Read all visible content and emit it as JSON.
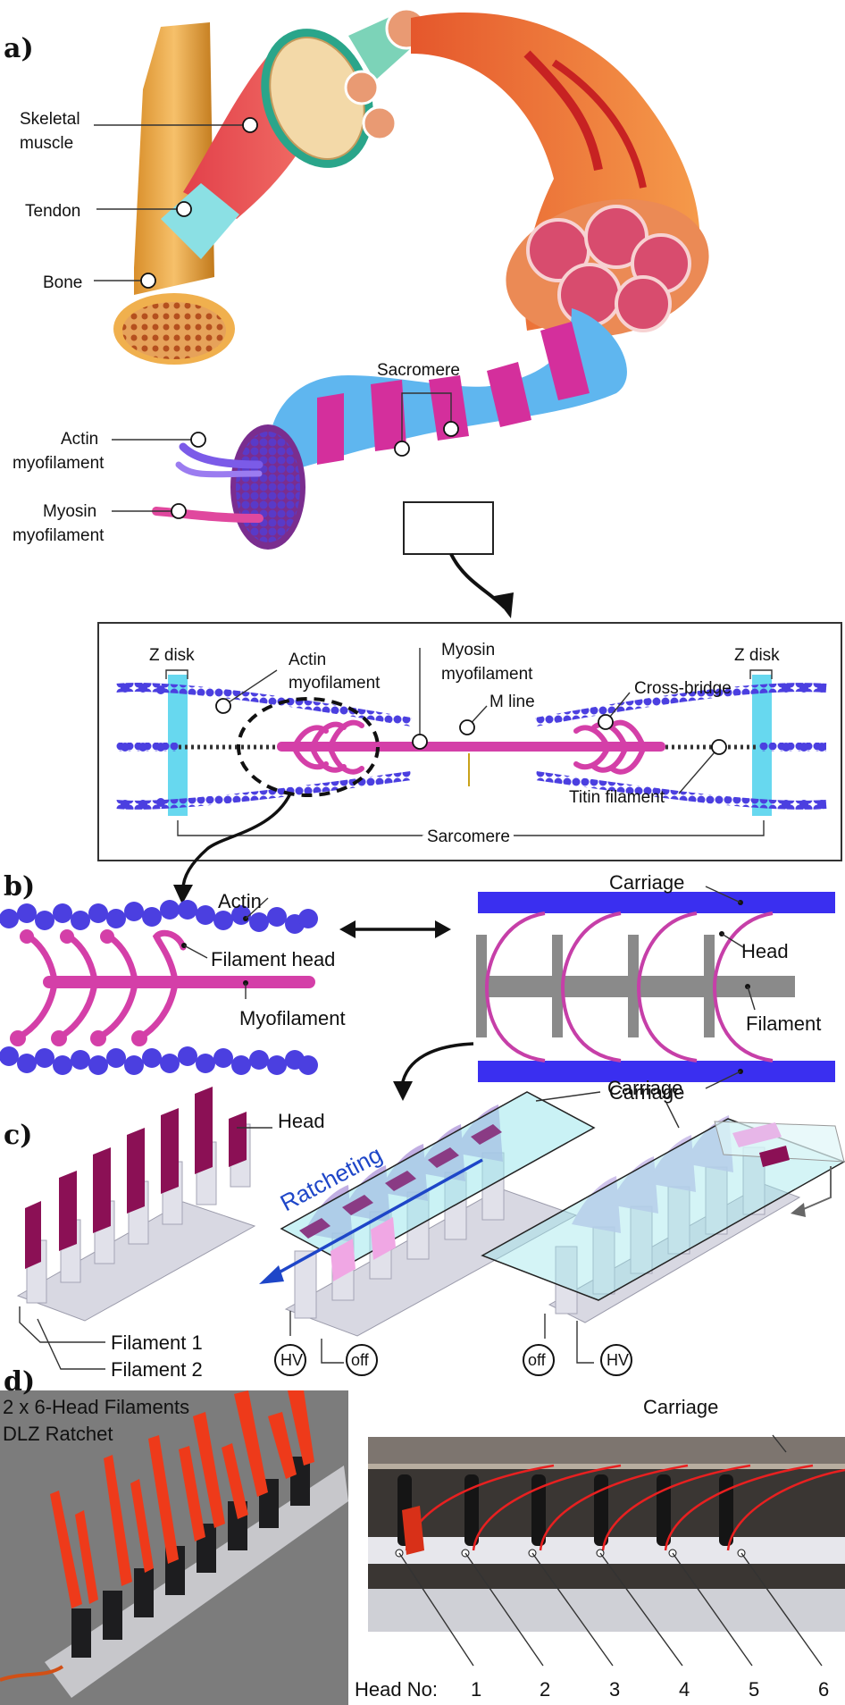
{
  "panels": {
    "a": "a)",
    "b": "b)",
    "c": "c)",
    "d": "d)"
  },
  "anatomy": {
    "skeletal_muscle_1": "Skeletal",
    "skeletal_muscle_2": "muscle",
    "tendon": "Tendon",
    "bone": "Bone",
    "sacromere_top": "Sacromere",
    "actin_1": "Actin",
    "actin_2": "myofilament",
    "myosin_1": "Myosin",
    "myosin_2": "myofilament"
  },
  "sarcomere_box": {
    "z_disk_left": "Z disk",
    "z_disk_right": "Z disk",
    "actin_1": "Actin",
    "actin_2": "myofilament",
    "myosin_1": "Myosin",
    "myosin_2": "myofilament",
    "m_line": "M line",
    "cross_bridge": "Cross-bridge",
    "titin": "Titin filament",
    "sarcomere": "Sarcomere"
  },
  "panel_b": {
    "actin": "Actin",
    "filament_head": "Filament head",
    "myofilament": "Myofilament",
    "carriage_top": "Carriage",
    "head": "Head",
    "filament": "Filament",
    "carriage_bottom": "Carriage"
  },
  "panel_c": {
    "head": "Head",
    "carriage": "Carriage",
    "ratcheting": "Ratcheting",
    "filament1": "Filament 1",
    "filament2": "Filament 2",
    "hv_left": "HV",
    "off_left": "off",
    "off_right": "off",
    "hv_right": "HV"
  },
  "panel_d": {
    "photo_title_1": "2 x 6-Head Filaments",
    "photo_title_2": "DLZ Ratchet",
    "carriage": "Carriage",
    "head_no_label": "Head No:",
    "head_numbers": [
      "1",
      "2",
      "3",
      "4",
      "5",
      "6"
    ]
  },
  "colors": {
    "actin": "#4b3fe0",
    "myosin": "#d43fa8",
    "carriage": "#3a2ff0",
    "filament_grey": "#8a8a8a",
    "ratchet_arrow": "#1e46c8",
    "head_dark": "#8b1055",
    "photo_head": "#ee3a1a"
  }
}
